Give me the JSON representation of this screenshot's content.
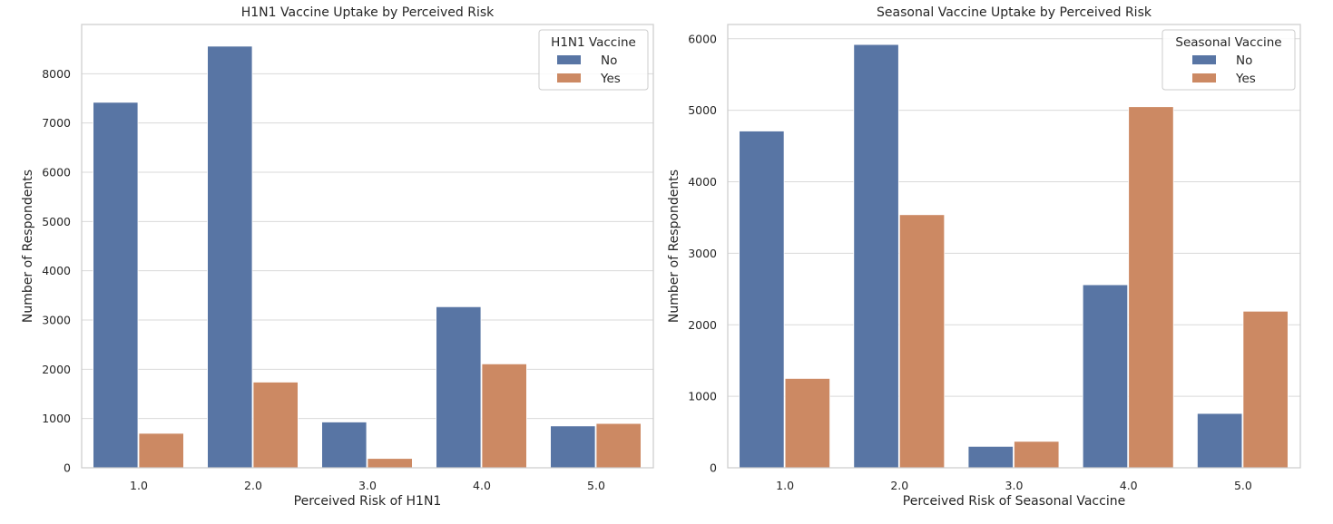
{
  "colors": {
    "no": "#5875a4",
    "yes": "#cc8963",
    "grid": "#d9d9d9",
    "frame": "#cccccc"
  },
  "chart_data": [
    {
      "type": "bar",
      "title": "H1N1 Vaccine Uptake by Perceived Risk",
      "xlabel": "Perceived Risk of H1N1",
      "ylabel": "Number of Respondents",
      "categories": [
        "1.0",
        "2.0",
        "3.0",
        "4.0",
        "5.0"
      ],
      "series": [
        {
          "name": "No",
          "values": [
            7420,
            8560,
            930,
            3270,
            850
          ]
        },
        {
          "name": "Yes",
          "values": [
            700,
            1740,
            190,
            2110,
            900
          ]
        }
      ],
      "ylim": [
        0,
        9000
      ],
      "yticks": [
        0,
        1000,
        2000,
        3000,
        4000,
        5000,
        6000,
        7000,
        8000
      ],
      "legend": {
        "title": "H1N1 Vaccine",
        "placement": "top-right"
      },
      "grid": true
    },
    {
      "type": "bar",
      "title": "Seasonal Vaccine Uptake by Perceived Risk",
      "xlabel": "Perceived Risk of Seasonal Vaccine",
      "ylabel": "Number of Respondents",
      "categories": [
        "1.0",
        "2.0",
        "3.0",
        "4.0",
        "5.0"
      ],
      "series": [
        {
          "name": "No",
          "values": [
            4710,
            5920,
            300,
            2560,
            760
          ]
        },
        {
          "name": "Yes",
          "values": [
            1250,
            3540,
            370,
            5050,
            2190
          ]
        }
      ],
      "ylim": [
        0,
        6200
      ],
      "yticks": [
        0,
        1000,
        2000,
        3000,
        4000,
        5000,
        6000
      ],
      "legend": {
        "title": "Seasonal Vaccine",
        "placement": "top-right"
      },
      "grid": true
    }
  ]
}
